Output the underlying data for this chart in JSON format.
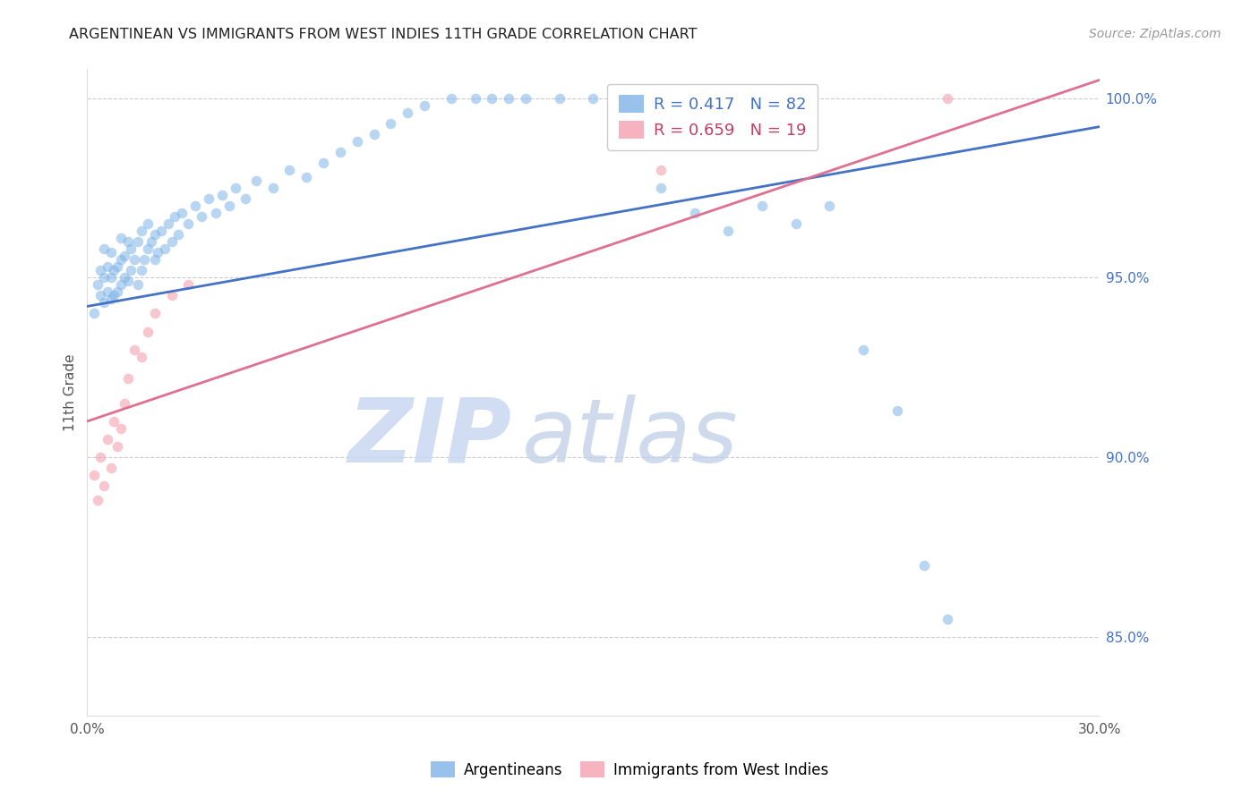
{
  "title": "ARGENTINEAN VS IMMIGRANTS FROM WEST INDIES 11TH GRADE CORRELATION CHART",
  "source": "Source: ZipAtlas.com",
  "ylabel": "11th Grade",
  "x_min": 0.0,
  "x_max": 0.3,
  "y_min": 0.828,
  "y_max": 1.008,
  "y_ticks": [
    0.85,
    0.9,
    0.95,
    1.0
  ],
  "y_tick_labels": [
    "85.0%",
    "90.0%",
    "95.0%",
    "100.0%"
  ],
  "x_ticks": [
    0.0,
    0.05,
    0.1,
    0.15,
    0.2,
    0.25,
    0.3
  ],
  "x_tick_labels": [
    "0.0%",
    "",
    "",
    "",
    "",
    "",
    "30.0%"
  ],
  "legend_blue_R": "0.417",
  "legend_blue_N": "82",
  "legend_pink_R": "0.659",
  "legend_pink_N": "19",
  "legend_label_blue": "Argentineans",
  "legend_label_pink": "Immigrants from West Indies",
  "blue_color": "#7EB3E8",
  "pink_color": "#F4A0B0",
  "blue_line_color": "#4472C4",
  "pink_line_color": "#E07090",
  "marker_size": 70,
  "blue_marker_alpha": 0.55,
  "pink_marker_alpha": 0.6,
  "blue_line_y0": 0.942,
  "blue_line_y1": 0.992,
  "pink_line_y0": 0.91,
  "pink_line_y1": 1.005,
  "watermark_zip": "ZIP",
  "watermark_atlas": "atlas",
  "blue_scatter_x": [
    0.002,
    0.003,
    0.004,
    0.004,
    0.005,
    0.005,
    0.005,
    0.006,
    0.006,
    0.007,
    0.007,
    0.007,
    0.008,
    0.008,
    0.009,
    0.009,
    0.01,
    0.01,
    0.01,
    0.011,
    0.011,
    0.012,
    0.012,
    0.013,
    0.013,
    0.014,
    0.015,
    0.015,
    0.016,
    0.016,
    0.017,
    0.018,
    0.018,
    0.019,
    0.02,
    0.02,
    0.021,
    0.022,
    0.023,
    0.024,
    0.025,
    0.026,
    0.027,
    0.028,
    0.03,
    0.032,
    0.034,
    0.036,
    0.038,
    0.04,
    0.042,
    0.044,
    0.047,
    0.05,
    0.055,
    0.06,
    0.065,
    0.07,
    0.075,
    0.08,
    0.085,
    0.09,
    0.095,
    0.1,
    0.108,
    0.115,
    0.12,
    0.125,
    0.13,
    0.14,
    0.15,
    0.16,
    0.17,
    0.18,
    0.19,
    0.2,
    0.21,
    0.22,
    0.23,
    0.24,
    0.248,
    0.255
  ],
  "blue_scatter_y": [
    0.94,
    0.948,
    0.945,
    0.952,
    0.943,
    0.95,
    0.958,
    0.946,
    0.953,
    0.944,
    0.95,
    0.957,
    0.945,
    0.952,
    0.946,
    0.953,
    0.948,
    0.955,
    0.961,
    0.95,
    0.956,
    0.949,
    0.96,
    0.952,
    0.958,
    0.955,
    0.948,
    0.96,
    0.952,
    0.963,
    0.955,
    0.958,
    0.965,
    0.96,
    0.955,
    0.962,
    0.957,
    0.963,
    0.958,
    0.965,
    0.96,
    0.967,
    0.962,
    0.968,
    0.965,
    0.97,
    0.967,
    0.972,
    0.968,
    0.973,
    0.97,
    0.975,
    0.972,
    0.977,
    0.975,
    0.98,
    0.978,
    0.982,
    0.985,
    0.988,
    0.99,
    0.993,
    0.996,
    0.998,
    1.0,
    1.0,
    1.0,
    1.0,
    1.0,
    1.0,
    1.0,
    1.0,
    0.975,
    0.968,
    0.963,
    0.97,
    0.965,
    0.97,
    0.93,
    0.913,
    0.87,
    0.855
  ],
  "pink_scatter_x": [
    0.002,
    0.003,
    0.004,
    0.005,
    0.006,
    0.007,
    0.008,
    0.009,
    0.01,
    0.011,
    0.012,
    0.014,
    0.016,
    0.018,
    0.02,
    0.025,
    0.03,
    0.17,
    0.255
  ],
  "pink_scatter_y": [
    0.895,
    0.888,
    0.9,
    0.892,
    0.905,
    0.897,
    0.91,
    0.903,
    0.908,
    0.915,
    0.922,
    0.93,
    0.928,
    0.935,
    0.94,
    0.945,
    0.948,
    0.98,
    1.0
  ]
}
